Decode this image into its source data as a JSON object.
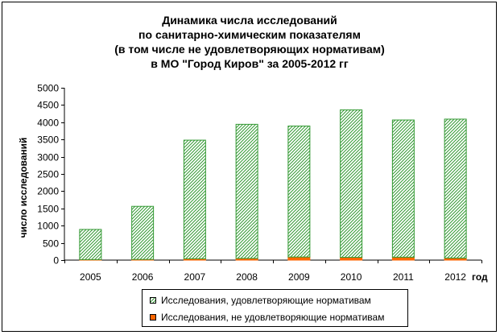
{
  "chart_data": {
    "type": "bar",
    "stacked": true,
    "title_lines": [
      "Динамика числа исследований",
      "по санитарно-химическим показателям",
      "(в том числе не удовлетворяющих нормативам)",
      "в МО \"Город Киров\" за 2005-2012 гг"
    ],
    "xlabel": "год",
    "ylabel": "число исследований",
    "ylim": [
      0,
      5000
    ],
    "yticks": [
      0,
      500,
      1000,
      1500,
      2000,
      2500,
      3000,
      3500,
      4000,
      4500,
      5000
    ],
    "categories": [
      "2005",
      "2006",
      "2007",
      "2008",
      "2009",
      "2010",
      "2011",
      "2012"
    ],
    "series": [
      {
        "name": "Исследования, не удовлетворяющие нормативам",
        "color": "#ff6600",
        "values": [
          15,
          20,
          40,
          50,
          90,
          80,
          85,
          60
        ]
      },
      {
        "name": "Исследования, удовлетворяющие нормативам",
        "color": "#339933",
        "pattern": "diagonal-hatch",
        "values": [
          875,
          1540,
          3440,
          3890,
          3800,
          4280,
          3980,
          4030
        ]
      }
    ],
    "legend_position": "bottom",
    "grid": false
  }
}
